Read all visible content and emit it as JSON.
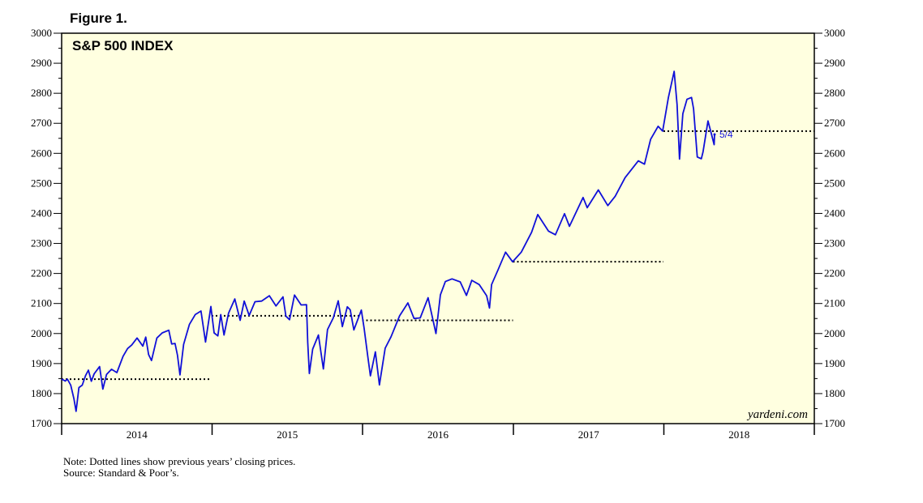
{
  "figure_label": "Figure 1.",
  "watermark": "yardeni.com",
  "notes": {
    "note": "Note: Dotted lines show previous years’ closing prices.",
    "source": "Source: Standard & Poor’s."
  },
  "colors": {
    "plot_background": "#ffffe0",
    "series": "#1010d8",
    "reference_lines": "#000000"
  },
  "chart_data": {
    "type": "line",
    "title": "S&P 500 INDEX",
    "xlabel": "",
    "ylabel": "",
    "y_axis_sides": [
      "left",
      "right"
    ],
    "ylim": [
      1700,
      3000
    ],
    "y_ticks": [
      1700,
      1800,
      1900,
      2000,
      2100,
      2200,
      2300,
      2400,
      2500,
      2600,
      2700,
      2800,
      2900,
      3000
    ],
    "xlim": [
      "2014-01-01",
      "2018-12-31"
    ],
    "x_tick_labels": [
      "2014",
      "2015",
      "2016",
      "2017",
      "2018"
    ],
    "grid": false,
    "annotation": {
      "label": "5/4",
      "x": "2018-05-04",
      "y": 2663
    },
    "reference_lines": [
      {
        "value": 1848,
        "start": "2014-01-01",
        "end": "2014-12-31"
      },
      {
        "value": 2059,
        "start": "2014-12-31",
        "end": "2015-12-31"
      },
      {
        "value": 2044,
        "start": "2015-12-31",
        "end": "2016-12-31"
      },
      {
        "value": 2239,
        "start": "2016-12-31",
        "end": "2017-12-31"
      },
      {
        "value": 2674,
        "start": "2017-12-31",
        "end": "2018-12-31"
      }
    ],
    "series": [
      {
        "points": [
          [
            "2014-01-01",
            1848
          ],
          [
            "2014-01-10",
            1842
          ],
          [
            "2014-01-15",
            1848
          ],
          [
            "2014-01-23",
            1828
          ],
          [
            "2014-01-31",
            1782
          ],
          [
            "2014-02-05",
            1741
          ],
          [
            "2014-02-12",
            1820
          ],
          [
            "2014-02-20",
            1828
          ],
          [
            "2014-02-28",
            1860
          ],
          [
            "2014-03-07",
            1878
          ],
          [
            "2014-03-14",
            1841
          ],
          [
            "2014-03-21",
            1866
          ],
          [
            "2014-04-03",
            1890
          ],
          [
            "2014-04-11",
            1815
          ],
          [
            "2014-04-20",
            1864
          ],
          [
            "2014-05-02",
            1881
          ],
          [
            "2014-05-15",
            1870
          ],
          [
            "2014-05-30",
            1924
          ],
          [
            "2014-06-10",
            1950
          ],
          [
            "2014-06-20",
            1962
          ],
          [
            "2014-07-03",
            1985
          ],
          [
            "2014-07-17",
            1958
          ],
          [
            "2014-07-24",
            1988
          ],
          [
            "2014-07-31",
            1930
          ],
          [
            "2014-08-07",
            1910
          ],
          [
            "2014-08-20",
            1985
          ],
          [
            "2014-09-02",
            2002
          ],
          [
            "2014-09-18",
            2011
          ],
          [
            "2014-09-25",
            1965
          ],
          [
            "2014-10-03",
            1967
          ],
          [
            "2014-10-09",
            1928
          ],
          [
            "2014-10-15",
            1862
          ],
          [
            "2014-10-24",
            1964
          ],
          [
            "2014-11-07",
            2030
          ],
          [
            "2014-11-21",
            2063
          ],
          [
            "2014-12-05",
            2075
          ],
          [
            "2014-12-16",
            1972
          ],
          [
            "2014-12-29",
            2090
          ],
          [
            "2015-01-06",
            2002
          ],
          [
            "2015-01-15",
            1992
          ],
          [
            "2015-01-22",
            2063
          ],
          [
            "2015-01-30",
            1995
          ],
          [
            "2015-02-10",
            2068
          ],
          [
            "2015-02-25",
            2115
          ],
          [
            "2015-03-10",
            2044
          ],
          [
            "2015-03-20",
            2108
          ],
          [
            "2015-04-01",
            2060
          ],
          [
            "2015-04-15",
            2106
          ],
          [
            "2015-05-01",
            2108
          ],
          [
            "2015-05-20",
            2126
          ],
          [
            "2015-06-05",
            2092
          ],
          [
            "2015-06-22",
            2122
          ],
          [
            "2015-06-29",
            2058
          ],
          [
            "2015-07-08",
            2046
          ],
          [
            "2015-07-20",
            2128
          ],
          [
            "2015-08-05",
            2095
          ],
          [
            "2015-08-18",
            2096
          ],
          [
            "2015-08-21",
            1971
          ],
          [
            "2015-08-25",
            1867
          ],
          [
            "2015-09-02",
            1948
          ],
          [
            "2015-09-16",
            1995
          ],
          [
            "2015-09-28",
            1882
          ],
          [
            "2015-10-08",
            2013
          ],
          [
            "2015-10-22",
            2052
          ],
          [
            "2015-11-03",
            2109
          ],
          [
            "2015-11-13",
            2023
          ],
          [
            "2015-11-25",
            2089
          ],
          [
            "2015-12-02",
            2079
          ],
          [
            "2015-12-11",
            2012
          ],
          [
            "2015-12-29",
            2078
          ],
          [
            "2016-01-05",
            2016
          ],
          [
            "2016-01-14",
            1921
          ],
          [
            "2016-01-20",
            1859
          ],
          [
            "2016-02-01",
            1939
          ],
          [
            "2016-02-11",
            1829
          ],
          [
            "2016-02-25",
            1951
          ],
          [
            "2016-03-10",
            1989
          ],
          [
            "2016-03-31",
            2059
          ],
          [
            "2016-04-20",
            2102
          ],
          [
            "2016-05-05",
            2050
          ],
          [
            "2016-05-20",
            2052
          ],
          [
            "2016-06-08",
            2119
          ],
          [
            "2016-06-27",
            2000
          ],
          [
            "2016-07-08",
            2129
          ],
          [
            "2016-07-20",
            2173
          ],
          [
            "2016-08-05",
            2182
          ],
          [
            "2016-08-25",
            2172
          ],
          [
            "2016-09-09",
            2127
          ],
          [
            "2016-09-22",
            2177
          ],
          [
            "2016-10-10",
            2163
          ],
          [
            "2016-10-28",
            2126
          ],
          [
            "2016-11-04",
            2085
          ],
          [
            "2016-11-09",
            2163
          ],
          [
            "2016-11-25",
            2213
          ],
          [
            "2016-12-13",
            2271
          ],
          [
            "2016-12-30",
            2239
          ],
          [
            "2017-01-20",
            2271
          ],
          [
            "2017-02-14",
            2337
          ],
          [
            "2017-03-01",
            2396
          ],
          [
            "2017-03-27",
            2341
          ],
          [
            "2017-04-13",
            2329
          ],
          [
            "2017-05-05",
            2399
          ],
          [
            "2017-05-17",
            2357
          ],
          [
            "2017-06-19",
            2453
          ],
          [
            "2017-06-29",
            2419
          ],
          [
            "2017-07-26",
            2478
          ],
          [
            "2017-08-18",
            2426
          ],
          [
            "2017-09-05",
            2457
          ],
          [
            "2017-09-29",
            2519
          ],
          [
            "2017-10-31",
            2575
          ],
          [
            "2017-11-15",
            2564
          ],
          [
            "2017-11-30",
            2647
          ],
          [
            "2017-12-18",
            2690
          ],
          [
            "2017-12-29",
            2674
          ],
          [
            "2018-01-12",
            2786
          ],
          [
            "2018-01-26",
            2873
          ],
          [
            "2018-02-02",
            2762
          ],
          [
            "2018-02-08",
            2581
          ],
          [
            "2018-02-16",
            2732
          ],
          [
            "2018-02-26",
            2780
          ],
          [
            "2018-03-09",
            2786
          ],
          [
            "2018-03-14",
            2749
          ],
          [
            "2018-03-23",
            2588
          ],
          [
            "2018-04-02",
            2582
          ],
          [
            "2018-04-06",
            2605
          ],
          [
            "2018-04-18",
            2708
          ],
          [
            "2018-04-26",
            2667
          ],
          [
            "2018-05-03",
            2629
          ],
          [
            "2018-05-04",
            2663
          ]
        ]
      }
    ]
  }
}
